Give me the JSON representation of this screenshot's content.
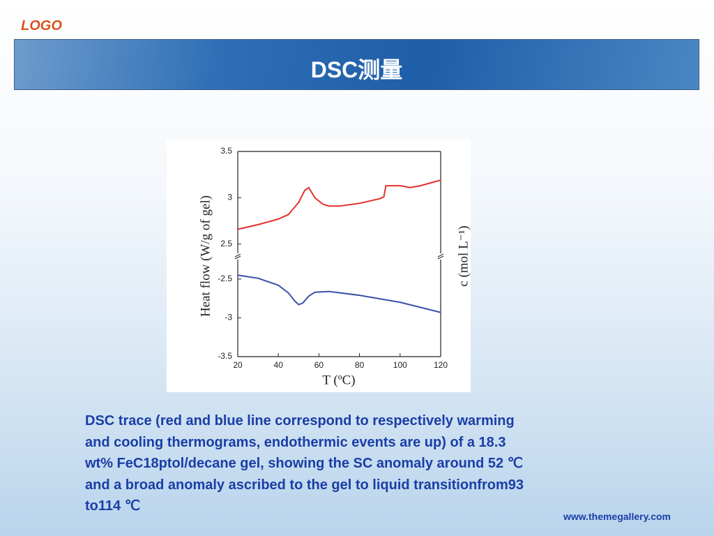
{
  "logo": "LOGO",
  "title": "DSC测量",
  "chart_data": [
    {
      "type": "line",
      "color": "#e3302b",
      "y_label": "Heat flow (W/g of gel)",
      "y2_label": "c (mol L⁻¹)",
      "x": [
        20,
        30,
        40,
        45,
        50,
        53,
        55,
        58,
        62,
        65,
        70,
        80,
        90,
        92,
        93,
        100,
        105,
        110,
        115,
        120
      ],
      "values": [
        2.66,
        2.71,
        2.77,
        2.82,
        2.95,
        3.08,
        3.11,
        3.0,
        2.93,
        2.91,
        2.91,
        2.94,
        2.99,
        3.01,
        3.13,
        3.13,
        3.11,
        3.13,
        3.16,
        3.19
      ],
      "xlim": [
        20,
        120
      ],
      "ylim": [
        2.4,
        3.5
      ],
      "yticks": [
        2.5,
        3,
        3.5
      ]
    },
    {
      "type": "line",
      "color": "#3c4fa8",
      "x_label": "T (ºC)",
      "x": [
        20,
        30,
        40,
        45,
        48,
        50,
        52,
        55,
        58,
        65,
        80,
        100,
        120
      ],
      "values": [
        -2.45,
        -2.49,
        -2.58,
        -2.68,
        -2.78,
        -2.83,
        -2.81,
        -2.72,
        -2.67,
        -2.66,
        -2.71,
        -2.8,
        -2.93
      ],
      "xlim": [
        20,
        120
      ],
      "ylim": [
        -3.5,
        -2.25
      ],
      "yticks": [
        -3.5,
        -3,
        -2.5
      ],
      "xticks": [
        20,
        40,
        60,
        80,
        100,
        120
      ]
    }
  ],
  "caption": [
    "DSC trace (red and blue line correspond to respectively warming",
    "and cooling thermograms, endothermic events are up) of a 18.3",
    "wt% FeC18ptol/decane gel, showing the SC anomaly around 52 ℃",
    "and a broad anomaly ascribed to the gel to liquid transitionfrom93",
    "to114 ℃"
  ],
  "footer": "www.themegallery.com"
}
